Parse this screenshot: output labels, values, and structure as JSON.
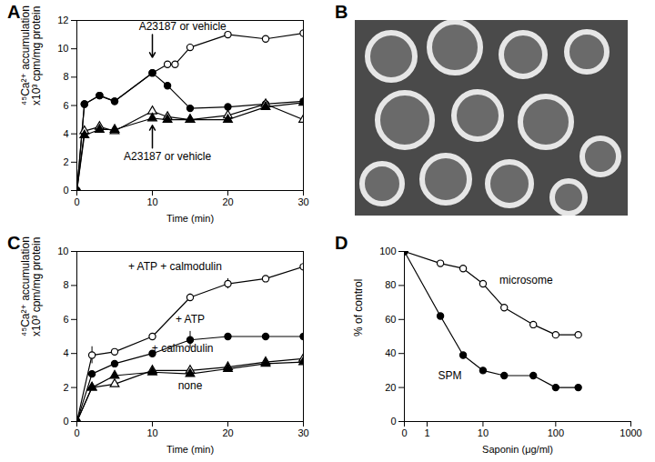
{
  "chart_data": [
    {
      "panel": "A",
      "type": "line",
      "xlabel": "Time (min)",
      "ylabel": [
        "⁴⁵Ca²⁺ accumulation",
        "x10³ cpm/mg protein"
      ],
      "xlim": [
        0,
        30
      ],
      "xticks": [
        0,
        10,
        20,
        30
      ],
      "ylim": [
        0,
        12
      ],
      "yticks": [
        0,
        2,
        4,
        6,
        8,
        10,
        12
      ],
      "series": [
        {
          "marker": "circle-open",
          "color": "#000000",
          "x": [
            0,
            1,
            3,
            5,
            10,
            12,
            13,
            15,
            20,
            25,
            30
          ],
          "values": [
            0,
            6.1,
            6.7,
            6.3,
            8.3,
            8.9,
            8.9,
            10.1,
            11.0,
            10.7,
            11.1
          ]
        },
        {
          "marker": "circle",
          "color": "#000000",
          "x": [
            0,
            1,
            3,
            5,
            10,
            12,
            15,
            20,
            25,
            30
          ],
          "values": [
            0,
            6.1,
            6.7,
            6.3,
            8.3,
            7.4,
            5.8,
            5.9,
            6.1,
            6.3
          ]
        },
        {
          "marker": "triangle-open",
          "color": "#000000",
          "x": [
            0,
            1,
            3,
            5,
            10,
            12,
            15,
            20,
            25,
            30
          ],
          "values": [
            0,
            4.2,
            4.5,
            4.2,
            5.6,
            5.2,
            5.0,
            5.3,
            6.1,
            5.0
          ]
        },
        {
          "marker": "triangle",
          "color": "#000000",
          "x": [
            0,
            1,
            3,
            5,
            10,
            12,
            15,
            20,
            25,
            30
          ],
          "values": [
            0,
            3.9,
            4.3,
            4.3,
            5.1,
            5.0,
            5.0,
            5.0,
            5.9,
            6.2
          ]
        }
      ],
      "annotations": [
        {
          "text": "A23187 or vehicle",
          "x": 14,
          "y": 11.6,
          "arrow": [
            [
              10,
              11.0
            ],
            [
              10,
              9.4
            ]
          ]
        },
        {
          "text": "A23187 or vehicle",
          "x": 12,
          "y": 2.4,
          "arrow": [
            [
              10,
              3.0
            ],
            [
              10,
              4.6
            ]
          ]
        }
      ]
    },
    {
      "panel": "B",
      "type": "image"
    },
    {
      "panel": "C",
      "type": "line",
      "xlabel": "Time (min)",
      "ylabel": [
        "⁴⁵Ca²⁺ accumulation",
        "x10³ cpm/mg protein"
      ],
      "xlim": [
        0,
        30
      ],
      "xticks": [
        0,
        10,
        20,
        30
      ],
      "ylim": [
        0,
        10
      ],
      "yticks": [
        0,
        2,
        4,
        6,
        8,
        10
      ],
      "series": [
        {
          "marker": "circle-open",
          "color": "#000000",
          "x": [
            0,
            2,
            5,
            10,
            15,
            20,
            25,
            30
          ],
          "values": [
            0,
            3.9,
            4.1,
            5.0,
            7.3,
            8.1,
            8.4,
            9.1
          ],
          "errors": [
            null,
            0.5,
            null,
            null,
            0.2,
            0.3,
            null,
            0.5
          ]
        },
        {
          "marker": "circle",
          "color": "#000000",
          "x": [
            0,
            2,
            5,
            10,
            15,
            20,
            25,
            30
          ],
          "values": [
            0,
            2.8,
            3.4,
            4.0,
            4.8,
            5.0,
            5.0,
            5.0
          ],
          "errors": [
            null,
            null,
            null,
            null,
            0.5,
            null,
            null,
            0.5
          ]
        },
        {
          "marker": "triangle-open",
          "color": "#000000",
          "x": [
            0,
            2,
            5,
            10,
            15,
            20,
            25,
            30
          ],
          "values": [
            0,
            2.0,
            2.2,
            3.0,
            3.0,
            3.2,
            3.5,
            3.7
          ]
        },
        {
          "marker": "triangle",
          "color": "#000000",
          "x": [
            0,
            2,
            5,
            10,
            15,
            20,
            25,
            30
          ],
          "values": [
            0,
            2.0,
            2.7,
            2.9,
            2.8,
            3.1,
            3.4,
            3.5
          ]
        }
      ],
      "annotations": [
        {
          "text": "+ ATP + calmodulin",
          "x": 13,
          "y": 9.1
        },
        {
          "text": "+ ATP",
          "x": 15,
          "y": 6.0
        },
        {
          "text": "+ calmodulin",
          "x": 14,
          "y": 4.3
        },
        {
          "text": "none",
          "x": 15,
          "y": 2.1
        }
      ]
    },
    {
      "panel": "D",
      "type": "line",
      "log": "x",
      "xlabel": "Saponin (μg/ml)",
      "ylabel": "% of control",
      "xlim": [
        0,
        1000
      ],
      "xticks": [
        0,
        1,
        10,
        100,
        1000
      ],
      "ylim": [
        0,
        100
      ],
      "yticks": [
        0,
        20,
        40,
        60,
        80,
        100
      ],
      "series": [
        {
          "marker": "circle-open",
          "color": "#000000",
          "x": [
            0,
            2,
            5,
            10,
            20,
            50,
            100,
            200
          ],
          "values": [
            100,
            93,
            90,
            81,
            67,
            57,
            51,
            51
          ]
        },
        {
          "marker": "circle",
          "color": "#000000",
          "x": [
            0,
            2,
            5,
            10,
            20,
            50,
            100,
            200
          ],
          "values": [
            100,
            62,
            39,
            30,
            27,
            27,
            20,
            20
          ]
        }
      ],
      "annotations": [
        {
          "text": "microsome",
          "x": 40,
          "y": 83
        },
        {
          "text": "SPM",
          "x": 3,
          "y": 27
        }
      ]
    }
  ]
}
